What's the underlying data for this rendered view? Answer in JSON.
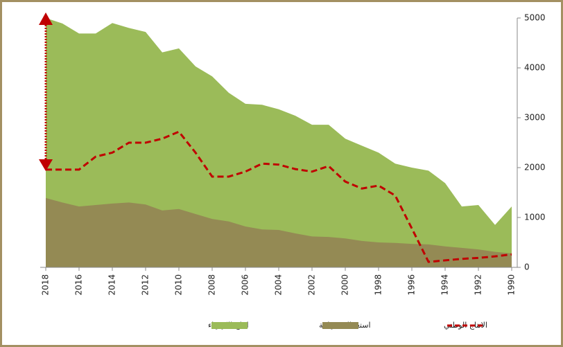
{
  "chart_data": {
    "type": "area",
    "x": [
      2018,
      2017,
      2016,
      2015,
      2014,
      2013,
      2012,
      2011,
      2010,
      2009,
      2008,
      2007,
      2006,
      2005,
      2004,
      2003,
      2002,
      2001,
      2000,
      1999,
      1998,
      1997,
      1996,
      1995,
      1994,
      1993,
      1992,
      1991,
      1990
    ],
    "xlim": [
      2018,
      1990
    ],
    "xticks": [
      2018,
      2016,
      2014,
      2012,
      2010,
      2008,
      2006,
      2004,
      2002,
      2000,
      1998,
      1996,
      1994,
      1992,
      1990
    ],
    "ylim": [
      0,
      5000
    ],
    "yticks": [
      0,
      1000,
      2000,
      3000,
      4000,
      5000
    ],
    "y_axis_side": "right",
    "grid": false,
    "legend": "bottom",
    "series": [
      {
        "name": "انتاج الكهرباء",
        "type": "area",
        "color": "#9bbb59",
        "values": [
          5000,
          4890,
          4690,
          4690,
          4900,
          4800,
          4720,
          4310,
          4390,
          4030,
          3830,
          3500,
          3280,
          3260,
          3170,
          3040,
          2860,
          2860,
          2580,
          2440,
          2300,
          2080,
          2000,
          1940,
          1690,
          1220,
          1250,
          850,
          1220
        ]
      },
      {
        "name": "استعمالات نهائية",
        "type": "area",
        "color": "#948a54",
        "values": [
          1390,
          1300,
          1220,
          1250,
          1280,
          1300,
          1260,
          1140,
          1170,
          1070,
          970,
          920,
          820,
          760,
          750,
          680,
          620,
          610,
          580,
          530,
          500,
          490,
          470,
          460,
          420,
          390,
          360,
          310,
          280
        ]
      },
      {
        "name": "الانتاج الوطني",
        "type": "line",
        "dashed": true,
        "color": "#c00000",
        "values": [
          1960,
          1960,
          1960,
          2220,
          2300,
          2500,
          2500,
          2580,
          2720,
          2300,
          1820,
          1820,
          1920,
          2080,
          2060,
          1970,
          1920,
          2030,
          1720,
          1580,
          1640,
          1440,
          780,
          110,
          140,
          170,
          190,
          220,
          260
        ]
      }
    ]
  }
}
